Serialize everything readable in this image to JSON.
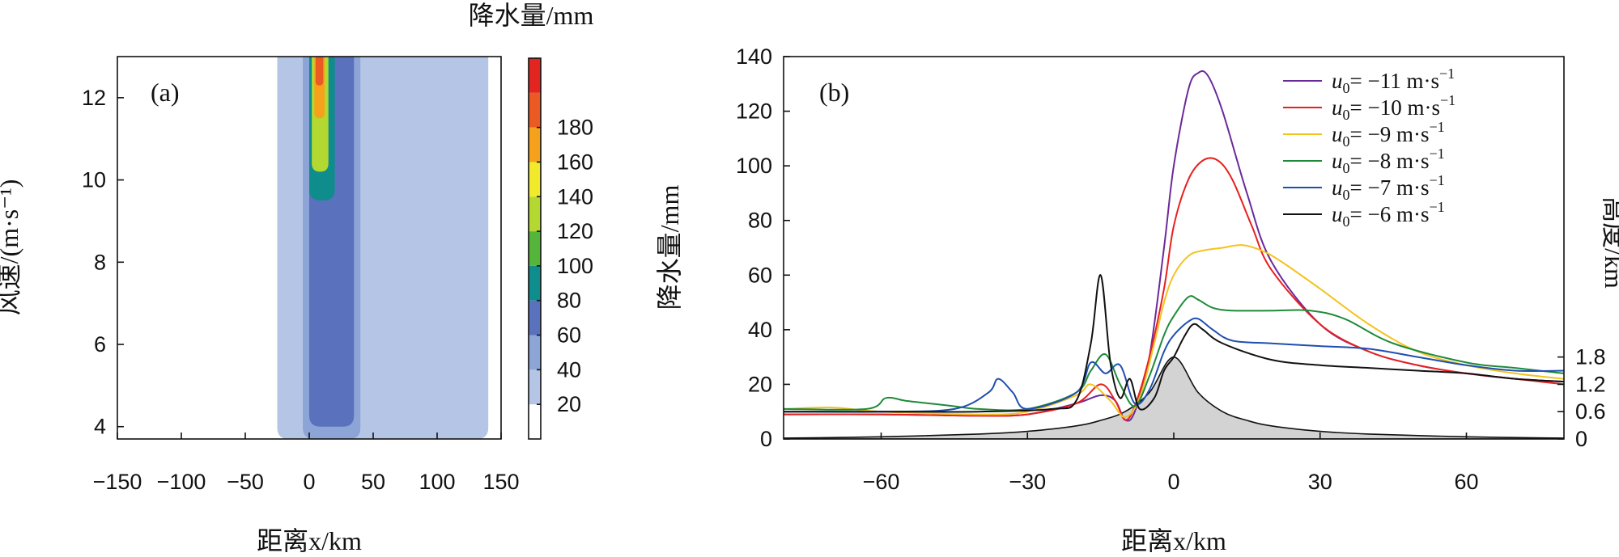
{
  "chart_data": [
    {
      "type": "contour",
      "panel_label": "(a)",
      "xlabel": "距离x/km",
      "ylabel": "风速/(m·s⁻¹)",
      "xlim": [
        -150,
        150
      ],
      "ylim": [
        3.7,
        13
      ],
      "xticks": [
        -150,
        -100,
        -50,
        0,
        50,
        100,
        150
      ],
      "yticks": [
        4,
        6,
        8,
        10,
        12
      ],
      "colorbar": {
        "title": "降水量/mm",
        "levels": [
          0,
          20,
          40,
          60,
          80,
          100,
          120,
          140,
          160,
          180,
          200
        ],
        "tick_labels": [
          "20",
          "40",
          "60",
          "80",
          "100",
          "120",
          "140",
          "160",
          "180"
        ],
        "colors": [
          "#ffffff",
          "#b5c5e6",
          "#8ca4d6",
          "#5a71bd",
          "#0f8c8c",
          "#55b53a",
          "#b4d832",
          "#f1ea2c",
          "#f6a11c",
          "#ec5a23",
          "#e2251f"
        ]
      },
      "regions": [
        {
          "level": 20,
          "x_range": [
            -25,
            140
          ],
          "y_range": [
            3.7,
            13
          ],
          "note": "broad light-blue area"
        },
        {
          "level": 40,
          "x_range": [
            -5,
            40
          ],
          "y_range": [
            3.7,
            13
          ]
        },
        {
          "level": 60,
          "x_range": [
            0,
            35
          ],
          "y_range": [
            4,
            13
          ]
        },
        {
          "level": 80,
          "x_range": [
            0,
            20
          ],
          "y_range": [
            9.5,
            13
          ]
        },
        {
          "level": 120,
          "x_range": [
            2,
            15
          ],
          "y_range": [
            10.2,
            13
          ]
        },
        {
          "level": 160,
          "x_range": [
            4,
            12
          ],
          "y_range": [
            11.5,
            13
          ]
        },
        {
          "level": 180,
          "x_range": [
            5,
            11
          ],
          "y_range": [
            12.3,
            13
          ]
        }
      ]
    },
    {
      "type": "line",
      "panel_label": "(b)",
      "xlabel": "距离x/km",
      "ylabel": "降水量/mm",
      "y2label": "高度/km",
      "xlim": [
        -80,
        80
      ],
      "ylim": [
        0,
        140
      ],
      "xticks": [
        -60,
        -30,
        0,
        30,
        60
      ],
      "yticks": [
        0,
        20,
        40,
        60,
        80,
        100,
        120,
        140
      ],
      "y2ticks": [
        "0",
        "0.6",
        "1.2",
        "1.8"
      ],
      "y2_tick_positions_in_y_units": [
        0,
        10,
        20,
        30
      ],
      "terrain": {
        "name": "terrain",
        "color": "#d3d3d3",
        "x": [
          -80,
          -60,
          -40,
          -30,
          -20,
          -15,
          -10,
          -5,
          0,
          5,
          10,
          15,
          20,
          30,
          40,
          60,
          80
        ],
        "y": [
          0.3,
          0.8,
          1.8,
          2.8,
          4.8,
          6.8,
          10,
          17,
          30,
          17,
          10,
          6.8,
          4.8,
          2.8,
          1.8,
          0.8,
          0.3
        ]
      },
      "legend": {
        "prefix": "u",
        "subscript": "0",
        "entries": [
          {
            "label": "= −11 m·s",
            "superscript": "−1"
          },
          {
            "label": "= −10 m·s",
            "superscript": "−1"
          },
          {
            "label": "= −9 m·s",
            "superscript": "−1"
          },
          {
            "label": "= −8 m·s",
            "superscript": "−1"
          },
          {
            "label": "= −7 m·s",
            "superscript": "−1"
          },
          {
            "label": "= −6 m·s",
            "superscript": "−1"
          }
        ]
      },
      "series": [
        {
          "name": "u0 = −11 m·s−1",
          "color": "#6a2a9a",
          "x": [
            -80,
            -60,
            -40,
            -30,
            -20,
            -15,
            -12,
            -10,
            -8,
            -5,
            -2,
            0,
            3,
            5,
            7,
            10,
            15,
            20,
            30,
            40,
            50,
            60,
            70,
            80
          ],
          "y": [
            9,
            9,
            8.5,
            9,
            13,
            16,
            14,
            7,
            10,
            30,
            70,
            100,
            128,
            134,
            133,
            120,
            90,
            65,
            42,
            32,
            27,
            24,
            22,
            21
          ]
        },
        {
          "name": "u0 = −10 m·s−1",
          "color": "#e8201e",
          "x": [
            -80,
            -60,
            -40,
            -30,
            -20,
            -15,
            -12,
            -10,
            -8,
            -5,
            -2,
            0,
            3,
            6,
            9,
            12,
            16,
            20,
            30,
            40,
            50,
            60,
            70,
            80
          ],
          "y": [
            9,
            9,
            8.5,
            9,
            13,
            20,
            14,
            7,
            12,
            30,
            55,
            78,
            95,
            102,
            102,
            95,
            78,
            62,
            42,
            32,
            27,
            24,
            22,
            20
          ]
        },
        {
          "name": "u0 = −9 m·s−1",
          "color": "#f3c320",
          "x": [
            -80,
            -70,
            -60,
            -40,
            -30,
            -20,
            -17,
            -13,
            -10,
            -7,
            -4,
            -2,
            0,
            3,
            6,
            10,
            14,
            18,
            22,
            30,
            40,
            50,
            60,
            70,
            80
          ],
          "y": [
            11,
            11.5,
            10,
            9,
            10,
            16,
            20,
            14,
            8,
            15,
            35,
            50,
            60,
            67,
            69,
            70,
            71,
            69,
            65,
            55,
            42,
            32,
            27,
            24,
            22
          ]
        },
        {
          "name": "u0 = −8 m·s−1",
          "color": "#1f8a3a",
          "x": [
            -80,
            -63,
            -59,
            -55,
            -50,
            -45,
            -40,
            -30,
            -20,
            -17,
            -14,
            -11,
            -8,
            -5,
            -2,
            0,
            3,
            5,
            8,
            12,
            20,
            28,
            35,
            45,
            60,
            70,
            80
          ],
          "y": [
            11,
            11,
            15,
            14,
            13,
            12,
            11,
            11,
            17,
            25,
            31,
            20,
            12,
            23,
            38,
            45,
            52,
            51,
            48,
            47,
            47,
            47,
            44,
            35,
            28,
            26,
            24
          ]
        },
        {
          "name": "u0 = −7 m·s−1",
          "color": "#1f4fb0",
          "x": [
            -80,
            -60,
            -45,
            -38,
            -36,
            -33,
            -30,
            -20,
            -17,
            -14,
            -11,
            -8,
            -5,
            -2,
            0,
            3,
            5,
            8,
            12,
            20,
            30,
            40,
            50,
            60,
            70,
            80
          ],
          "y": [
            10,
            10,
            11,
            17,
            22,
            17,
            11,
            17,
            28,
            24,
            27,
            13,
            18,
            32,
            38,
            43,
            44,
            40,
            36,
            35,
            34,
            33,
            30,
            27,
            25,
            25
          ]
        },
        {
          "name": "u0 = −6 m·s−1",
          "color": "#111111",
          "x": [
            -80,
            -60,
            -40,
            -25,
            -20,
            -17,
            -15,
            -13,
            -11,
            -9,
            -7,
            -4,
            -2,
            0,
            2,
            4,
            6,
            10,
            20,
            30,
            40,
            50,
            60,
            70,
            80
          ],
          "y": [
            10,
            10,
            10,
            11,
            14,
            35,
            60,
            28,
            15,
            22,
            11,
            15,
            25,
            30,
            37,
            42,
            40,
            35,
            29,
            27,
            26,
            25,
            24,
            22,
            21
          ]
        }
      ]
    }
  ]
}
